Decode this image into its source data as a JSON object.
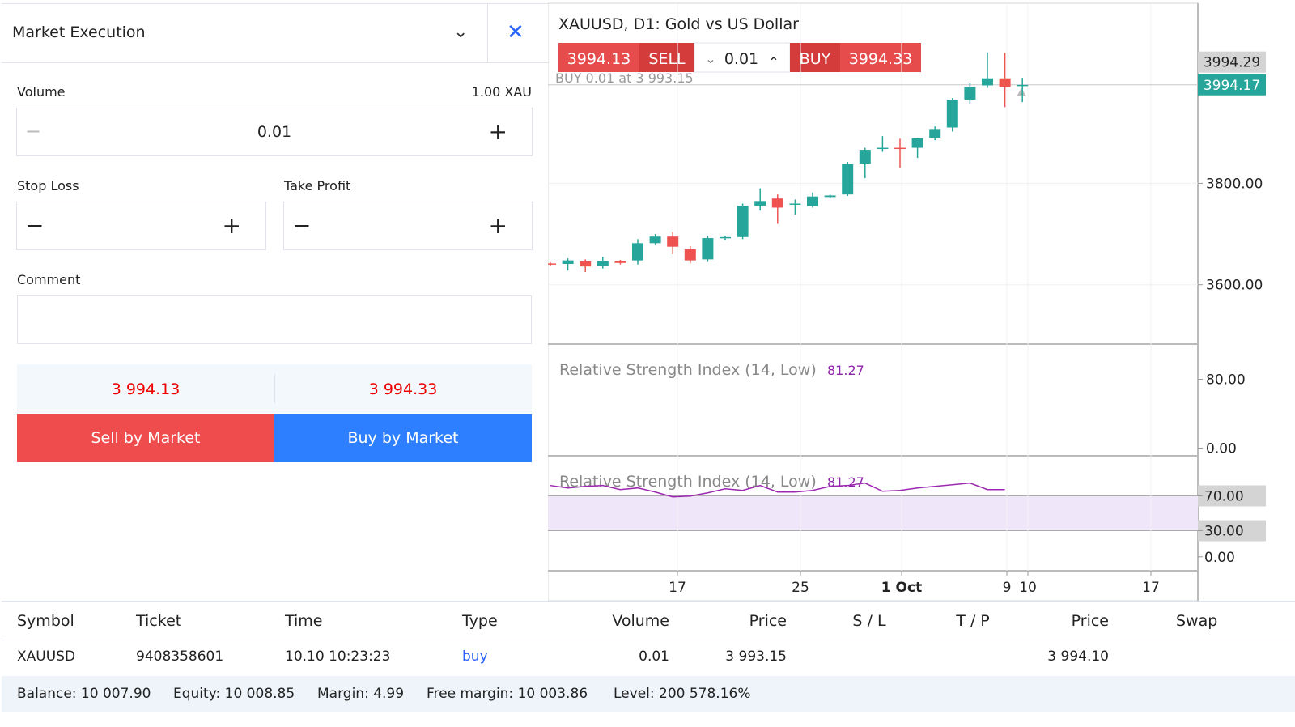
{
  "order": {
    "title": "Market Execution",
    "volume_label": "Volume",
    "volume_max": "1.00 XAU",
    "volume": "0.01",
    "stop_loss_label": "Stop Loss",
    "take_profit_label": "Take Profit",
    "comment_label": "Comment",
    "bid": "3 994.13",
    "ask": "3 994.33",
    "sell_button": "Sell by Market",
    "buy_button": "Buy by Market"
  },
  "chart": {
    "type": "candlestick",
    "title": "XAUUSD, D1: Gold vs US Dollar",
    "sell_price": "3994.13",
    "sell_label": "SELL",
    "lot": "0.01",
    "buy_label": "BUY",
    "buy_price": "3994.33",
    "position_line": "BUY 0.01 at 3 993.15",
    "ylim": [
      3483,
      4155
    ],
    "yticks": [
      {
        "value": 3600,
        "label": "3600.00"
      },
      {
        "value": 3800,
        "label": "3800.00"
      }
    ],
    "price_tags": [
      3994.29,
      3994.17
    ],
    "candles": [
      [
        3642,
        3644,
        3638,
        3640
      ],
      [
        3641,
        3652,
        3628,
        3648
      ],
      [
        3646,
        3650,
        3625,
        3636
      ],
      [
        3637,
        3655,
        3632,
        3647
      ],
      [
        3646,
        3649,
        3640,
        3643
      ],
      [
        3648,
        3690,
        3640,
        3682
      ],
      [
        3682,
        3700,
        3678,
        3695
      ],
      [
        3695,
        3705,
        3660,
        3675
      ],
      [
        3670,
        3676,
        3642,
        3648
      ],
      [
        3650,
        3697,
        3645,
        3692
      ],
      [
        3692,
        3697,
        3688,
        3694
      ],
      [
        3694,
        3760,
        3690,
        3756
      ],
      [
        3756,
        3790,
        3746,
        3765
      ],
      [
        3770,
        3778,
        3720,
        3752
      ],
      [
        3758,
        3768,
        3738,
        3760
      ],
      [
        3755,
        3782,
        3752,
        3774
      ],
      [
        3773,
        3778,
        3770,
        3776
      ],
      [
        3778,
        3842,
        3775,
        3838
      ],
      [
        3839,
        3870,
        3810,
        3866
      ],
      [
        3868,
        3893,
        3862,
        3870
      ],
      [
        3870,
        3888,
        3830,
        3869
      ],
      [
        3870,
        3890,
        3850,
        3889
      ],
      [
        3890,
        3912,
        3885,
        3907
      ],
      [
        3910,
        3968,
        3902,
        3965
      ],
      [
        3965,
        3997,
        3957,
        3990
      ],
      [
        3993,
        4058,
        3988,
        4007
      ],
      [
        4007,
        4057,
        3950,
        3990
      ],
      [
        3994,
        4008,
        3960,
        3994
      ]
    ],
    "xticks": [
      "17",
      "25",
      "1 Oct",
      "9",
      "10",
      "17"
    ],
    "rsi1": {
      "label": "Relative Strength Index (14, Low)",
      "value": "81.27",
      "ylim": [
        -9,
        121
      ],
      "yticks": [
        {
          "value": 80,
          "label": "80.00"
        },
        {
          "value": 0,
          "label": "0.00"
        }
      ]
    },
    "rsi2": {
      "label": "Relative Strength Index (14, Low)",
      "value": "81.27",
      "ylim": [
        -16,
        116
      ],
      "yticks": [
        {
          "value": 70,
          "label": "70.00"
        },
        {
          "value": 30,
          "label": "30.00"
        },
        {
          "value": 0,
          "label": "0.00"
        }
      ],
      "values": [
        81.9,
        79.1,
        80.9,
        81.9,
        77.2,
        79.1,
        74.4,
        68.8,
        69.8,
        73.5,
        78.1,
        76.3,
        81.9,
        74.4,
        74.4,
        76.3,
        80.9,
        81.9,
        84.7,
        75.3,
        76.3,
        79.1,
        80.9,
        82.8,
        84.7,
        77.2,
        77.2
      ]
    }
  },
  "positions": {
    "headers": [
      "Symbol",
      "Ticket",
      "Time",
      "Type",
      "Volume",
      "Price",
      "S / L",
      "T / P",
      "Price",
      "Swap"
    ],
    "rows": [
      [
        "XAUUSD",
        "9408358601",
        "10.10 10:23:23",
        "buy",
        "0.01",
        "3 993.15",
        "",
        "",
        "3 994.10",
        ""
      ]
    ]
  },
  "account": [
    "Balance: 10 007.90",
    "Equity: 10 008.85",
    "Margin: 4.99",
    "Free margin: 10 003.86",
    "Level: 200 578.16%"
  ]
}
